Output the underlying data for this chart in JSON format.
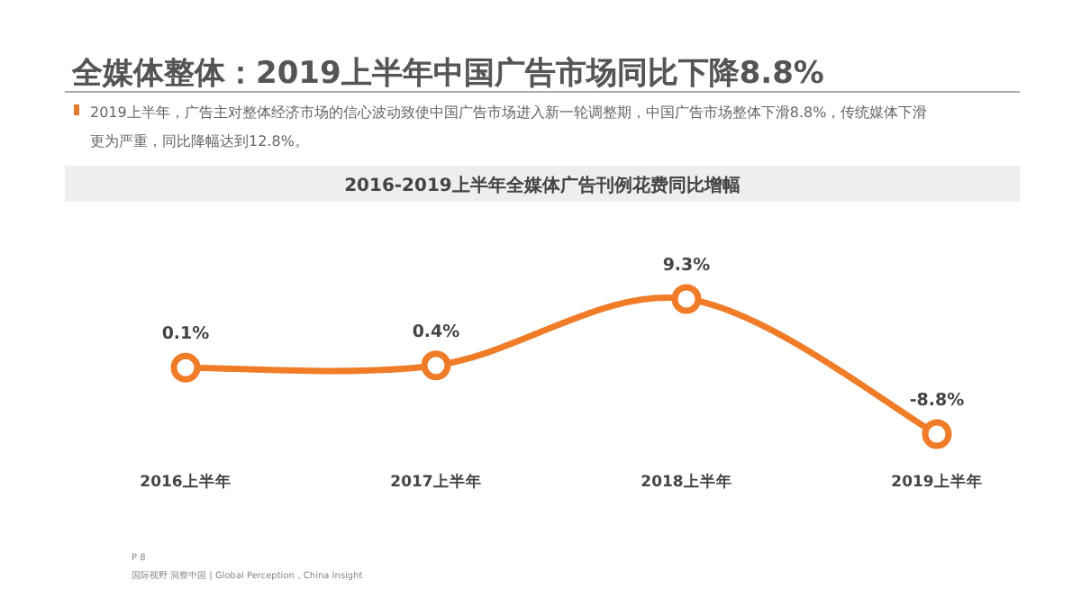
{
  "chart_data": {
    "type": "line",
    "title": "全媒体整体：2019上半年中国广告市场同比下降8.8%",
    "subtitle": "2019上半年，广告主对整体经济市场的信心波动致使中国广告市场进入新一轮调整期，中国广告市场整体下滑8.8%，传统媒体下滑更为严重，同比降幅达到12.8%。",
    "annotations": [
      "2016-2019上半年全媒体广告刊例花费同比增幅",
      "P 8",
      "国际视野 洞察中国 | Global Perception，China Insight"
    ],
    "categories": [
      "2016上半年",
      "2017上半年",
      "2018上半年",
      "2019上半年"
    ],
    "series": [
      {
        "color": "#f07c28",
        "values": [
          0.1,
          0.4,
          9.3,
          -8.8
        ],
        "value_labels": [
          "0.1%",
          "0.4%",
          "9.3%",
          "-8.8%"
        ]
      }
    ],
    "marker": "circle"
  }
}
